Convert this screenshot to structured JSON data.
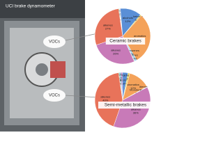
{
  "photo": {
    "label": "UCI brake dynamometer",
    "callouts": [
      "VOCs",
      "VOCs"
    ]
  },
  "chart_data": [
    {
      "type": "pie",
      "title": "Ceramic brakes",
      "categories": [
        "S-gaps",
        "cyclics",
        "furans",
        "alcohols",
        "ketones",
        "aromatics",
        "dienes",
        "Monoterpenes",
        "alkanes",
        "alkenes"
      ],
      "values": [
        0.4,
        0.3,
        0.3,
        12,
        0.7,
        29,
        1.3,
        0.3,
        26,
        27
      ],
      "value_labels": [
        "0.4%",
        "0.3%",
        "0.3%",
        "12%",
        "0.7%",
        "29%",
        "1.3%",
        "0.3%",
        "26%",
        "27%"
      ],
      "colors": [
        "#8fbf5a",
        "#6fc1c9",
        "#b58ad6",
        "#5a8fd6",
        "#e6d25a",
        "#f4a25a",
        "#a7d3f0",
        "#7fcf9a",
        "#c87ab8",
        "#e8735a"
      ]
    },
    {
      "type": "pie",
      "title": "Semi-metallic brakes",
      "categories": [
        "S-gaps",
        "cyclics",
        "furans",
        "alcohols",
        "carbonyls",
        "aromatics",
        "dienes",
        "Monoterpenes",
        "alkanes",
        "alkenes"
      ],
      "values": [
        0.4,
        0.8,
        1,
        3,
        1,
        12,
        0.3,
        0.1,
        36,
        40
      ],
      "value_labels": [
        "0.4%",
        "0.8%",
        "1%",
        "3%",
        "1%",
        "12%",
        "0.3%",
        "0.1%",
        "36%",
        "40%"
      ],
      "colors": [
        "#8fbf5a",
        "#6fc1c9",
        "#b58ad6",
        "#5a8fd6",
        "#e6d25a",
        "#f4a25a",
        "#a7d3f0",
        "#7fcf9a",
        "#c87ab8",
        "#e8735a"
      ]
    }
  ]
}
